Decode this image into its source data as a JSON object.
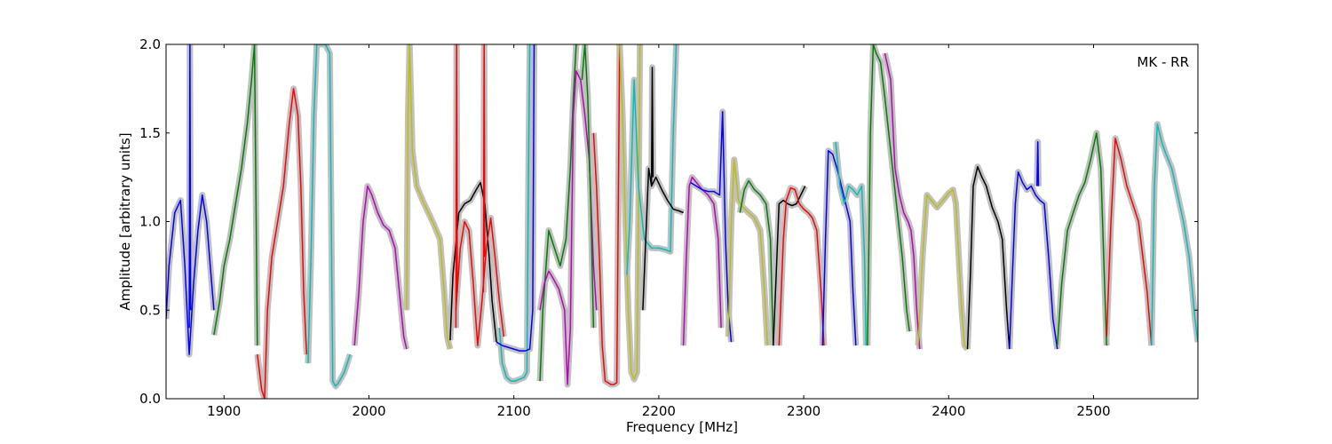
{
  "chart_data": {
    "type": "line",
    "title": "",
    "xlabel": "Frequency [MHz]",
    "ylabel": "Amplitude [arbitrary units]",
    "annotation": "MK - RR",
    "xlim": [
      1860,
      2572
    ],
    "ylim": [
      0.0,
      2.0
    ],
    "xticks": [
      1900,
      2000,
      2100,
      2200,
      2300,
      2400,
      2500
    ],
    "xtick_labels": [
      "1900",
      "2000",
      "2100",
      "2200",
      "2300",
      "2400",
      "2500"
    ],
    "yticks": [
      0.0,
      0.5,
      1.0,
      1.5,
      2.0
    ],
    "ytick_labels": [
      "0.0",
      "0.5",
      "1.0",
      "1.5",
      "2.0"
    ],
    "grid": false,
    "background_color": "#c0c0c0",
    "series": [
      {
        "color": "#0000ff",
        "x": [
          1860,
          1862,
          1866,
          1870,
          1873,
          1876,
          1879,
          1882,
          1885,
          1888,
          1891,
          1893
        ],
        "y": [
          0.45,
          0.75,
          1.05,
          1.12,
          0.75,
          0.25,
          0.65,
          0.95,
          1.15,
          1.0,
          0.7,
          0.5
        ]
      },
      {
        "color": "#0000ff",
        "x": [
          1876,
          1876.5,
          1877
        ],
        "y": [
          0.4,
          2.0,
          0.5
        ]
      },
      {
        "color": "#008000",
        "x": [
          1893,
          1897,
          1900,
          1904,
          1908,
          1912,
          1916,
          1919,
          1921,
          1923
        ],
        "y": [
          0.36,
          0.55,
          0.75,
          0.9,
          1.1,
          1.3,
          1.55,
          1.8,
          2.0,
          0.3
        ]
      },
      {
        "color": "#ff0000",
        "x": [
          1923,
          1926,
          1928,
          1930,
          1933,
          1937,
          1941,
          1945,
          1948,
          1951,
          1953,
          1955,
          1957
        ],
        "y": [
          0.25,
          0.05,
          0.0,
          0.5,
          0.8,
          1.0,
          1.2,
          1.55,
          1.75,
          1.6,
          1.2,
          0.6,
          0.25
        ]
      },
      {
        "color": "#00bfbf",
        "x": [
          1958,
          1960,
          1962,
          1964,
          1966,
          1968,
          1970,
          1973,
          1975,
          1977,
          1979,
          1981,
          1983,
          1985,
          1987
        ],
        "y": [
          0.2,
          0.8,
          1.6,
          2.0,
          2.0,
          2.0,
          2.0,
          1.95,
          0.1,
          0.07,
          0.09,
          0.12,
          0.15,
          0.2,
          0.25
        ]
      },
      {
        "color": "#bf00bf",
        "x": [
          1990,
          1993,
          1996,
          1999,
          2002,
          2006,
          2010,
          2014,
          2018,
          2021,
          2024,
          2026
        ],
        "y": [
          0.3,
          0.6,
          1.0,
          1.2,
          1.15,
          1.05,
          0.98,
          0.95,
          0.85,
          0.6,
          0.35,
          0.28
        ]
      },
      {
        "color": "#bfbf00",
        "x": [
          2026,
          2027,
          2028,
          2030,
          2033,
          2037,
          2041,
          2045,
          2049,
          2052,
          2054,
          2056
        ],
        "y": [
          0.5,
          1.6,
          2.0,
          1.4,
          1.2,
          1.12,
          1.05,
          0.98,
          0.9,
          0.6,
          0.35,
          0.28
        ]
      },
      {
        "color": "#000000",
        "x": [
          2056,
          2058,
          2062,
          2066,
          2070,
          2074,
          2077,
          2080,
          2083,
          2085,
          2088
        ],
        "y": [
          0.33,
          0.7,
          1.05,
          1.1,
          1.12,
          1.18,
          1.22,
          1.1,
          0.8,
          0.55,
          0.32
        ]
      },
      {
        "color": "#ff0000",
        "x": [
          2060,
          2063,
          2066,
          2069,
          2072,
          2075,
          2078,
          2081,
          2084,
          2087,
          2090,
          2093
        ],
        "y": [
          0.5,
          0.85,
          1.0,
          0.95,
          0.65,
          0.3,
          0.55,
          0.85,
          1.02,
          0.8,
          0.55,
          0.35
        ]
      },
      {
        "color": "#ff0000",
        "x": [
          2060,
          2060.5,
          2061
        ],
        "y": [
          0.4,
          2.0,
          0.6
        ]
      },
      {
        "color": "#ff0000",
        "x": [
          2079,
          2079.5,
          2080
        ],
        "y": [
          0.6,
          2.0,
          0.8
        ]
      },
      {
        "color": "#00bfbf",
        "x": [
          2090,
          2092,
          2095,
          2098,
          2101,
          2104,
          2107,
          2109,
          2110,
          2111
        ],
        "y": [
          0.4,
          0.2,
          0.12,
          0.1,
          0.1,
          0.11,
          0.12,
          0.15,
          1.2,
          2.0
        ]
      },
      {
        "color": "#0000ff",
        "x": [
          2088,
          2092,
          2096,
          2100,
          2104,
          2108,
          2111,
          2113,
          2114
        ],
        "y": [
          0.32,
          0.3,
          0.29,
          0.28,
          0.27,
          0.27,
          0.28,
          0.5,
          2.0
        ]
      },
      {
        "color": "#008000",
        "x": [
          2118,
          2120,
          2124,
          2128,
          2132,
          2136,
          2139,
          2141,
          2143
        ],
        "y": [
          0.1,
          0.5,
          0.95,
          0.85,
          0.75,
          0.9,
          1.3,
          1.7,
          2.0
        ]
      },
      {
        "color": "#bf00bf",
        "x": [
          2118,
          2121,
          2124,
          2127,
          2131,
          2135,
          2137,
          2139,
          2141,
          2143,
          2146,
          2149,
          2152,
          2155,
          2157
        ],
        "y": [
          0.5,
          0.65,
          0.72,
          0.68,
          0.62,
          0.5,
          0.08,
          0.4,
          1.6,
          1.85,
          1.8,
          1.6,
          1.35,
          0.75,
          0.5
        ]
      },
      {
        "color": "#008000",
        "x": [
          2147,
          2149,
          2151,
          2153,
          2155
        ],
        "y": [
          1.8,
          2.0,
          1.7,
          1.1,
          0.4
        ]
      },
      {
        "color": "#ff0000",
        "x": [
          2155,
          2157,
          2159,
          2161,
          2163,
          2165,
          2167,
          2169,
          2171,
          2173
        ],
        "y": [
          1.5,
          1.2,
          0.8,
          0.3,
          0.1,
          0.09,
          0.08,
          0.08,
          0.09,
          2.0
        ]
      },
      {
        "color": "#bfbf00",
        "x": [
          2173,
          2175,
          2177,
          2179,
          2181,
          2183,
          2185,
          2187
        ],
        "y": [
          2.0,
          1.6,
          1.0,
          0.5,
          0.15,
          0.11,
          0.15,
          2.0
        ]
      },
      {
        "color": "#00bfbf",
        "x": [
          2178,
          2180,
          2183,
          2186,
          2190,
          2195,
          2200,
          2205,
          2208,
          2210,
          2212
        ],
        "y": [
          0.7,
          1.0,
          1.8,
          1.2,
          0.9,
          0.85,
          0.85,
          0.84,
          0.83,
          1.5,
          2.0
        ]
      },
      {
        "color": "#000000",
        "x": [
          2189,
          2191,
          2193,
          2195,
          2198,
          2202,
          2206,
          2210,
          2214,
          2217
        ],
        "y": [
          0.5,
          0.9,
          1.3,
          1.2,
          1.25,
          1.18,
          1.12,
          1.07,
          1.06,
          1.05
        ]
      },
      {
        "color": "#000000",
        "x": [
          2195,
          2195.5,
          2196
        ],
        "y": [
          1.2,
          1.87,
          1.25
        ]
      },
      {
        "color": "#bf00bf",
        "x": [
          2217,
          2219,
          2221,
          2223,
          2226,
          2230,
          2234,
          2238,
          2241,
          2243
        ],
        "y": [
          0.3,
          0.8,
          1.2,
          1.25,
          1.22,
          1.18,
          1.15,
          1.1,
          0.9,
          0.4
        ]
      },
      {
        "color": "#0000ff",
        "x": [
          2222,
          2226,
          2230,
          2234,
          2238,
          2242,
          2244,
          2246,
          2248,
          2250
        ],
        "y": [
          1.22,
          1.2,
          1.18,
          1.17,
          1.17,
          1.15,
          1.62,
          0.9,
          0.5,
          0.32
        ]
      },
      {
        "color": "#bfbf00",
        "x": [
          2248,
          2250,
          2252,
          2255,
          2258,
          2262,
          2266,
          2270,
          2273,
          2275
        ],
        "y": [
          0.35,
          1.0,
          1.35,
          1.12,
          1.08,
          1.05,
          1.02,
          0.95,
          0.6,
          0.3
        ]
      },
      {
        "color": "#008000",
        "x": [
          2256,
          2259,
          2262,
          2266,
          2270,
          2274,
          2277,
          2279
        ],
        "y": [
          1.05,
          1.18,
          1.23,
          1.18,
          1.15,
          1.1,
          0.9,
          0.3
        ]
      },
      {
        "color": "#000000",
        "x": [
          2279,
          2281,
          2283,
          2286,
          2289,
          2292,
          2295,
          2298,
          2301
        ],
        "y": [
          0.3,
          0.7,
          1.1,
          1.12,
          1.1,
          1.09,
          1.1,
          1.15,
          1.2
        ]
      },
      {
        "color": "#ff0000",
        "x": [
          2283,
          2286,
          2288,
          2291,
          2294,
          2297,
          2300,
          2303,
          2306,
          2309,
          2312,
          2314
        ],
        "y": [
          0.3,
          0.9,
          1.12,
          1.19,
          1.18,
          1.1,
          1.07,
          1.05,
          1.02,
          0.95,
          0.6,
          0.3
        ]
      },
      {
        "color": "#0000ff",
        "x": [
          2313,
          2315,
          2317,
          2320,
          2323,
          2326,
          2329,
          2332,
          2334,
          2336
        ],
        "y": [
          0.3,
          0.9,
          1.4,
          1.38,
          1.3,
          1.2,
          1.1,
          1.0,
          0.6,
          0.3
        ]
      },
      {
        "color": "#00bfbf",
        "x": [
          2322,
          2325,
          2328,
          2331,
          2334,
          2337,
          2340,
          2342,
          2343
        ],
        "y": [
          1.45,
          1.2,
          1.1,
          1.2,
          1.18,
          1.15,
          1.2,
          0.8,
          0.3
        ]
      },
      {
        "color": "#008000",
        "x": [
          2344,
          2346,
          2348,
          2350,
          2353,
          2356,
          2360,
          2364,
          2368,
          2371,
          2373
        ],
        "y": [
          0.3,
          1.5,
          2.0,
          1.95,
          1.9,
          1.7,
          1.4,
          1.1,
          0.8,
          0.5,
          0.38
        ]
      },
      {
        "color": "#bf00bf",
        "x": [
          2356,
          2360,
          2363,
          2366,
          2369,
          2372,
          2374,
          2376,
          2378,
          2380
        ],
        "y": [
          1.95,
          1.8,
          1.3,
          1.15,
          1.05,
          1.0,
          0.95,
          0.8,
          0.5,
          0.28
        ]
      },
      {
        "color": "#bfbf00",
        "x": [
          2379,
          2382,
          2385,
          2388,
          2392,
          2396,
          2400,
          2403,
          2405,
          2407,
          2409,
          2411,
          2413
        ],
        "y": [
          0.3,
          0.8,
          1.15,
          1.12,
          1.08,
          1.12,
          1.16,
          1.18,
          1.1,
          0.8,
          0.5,
          0.3,
          0.28
        ]
      },
      {
        "color": "#000000",
        "x": [
          2413,
          2415,
          2417,
          2420,
          2423,
          2426,
          2430,
          2434,
          2437,
          2440,
          2442
        ],
        "y": [
          0.28,
          0.7,
          1.2,
          1.31,
          1.25,
          1.2,
          1.08,
          1.0,
          0.9,
          0.5,
          0.28
        ]
      },
      {
        "color": "#0000ff",
        "x": [
          2442,
          2444,
          2446,
          2448,
          2451,
          2454,
          2457,
          2460,
          2463,
          2466,
          2469,
          2472,
          2475
        ],
        "y": [
          0.28,
          0.7,
          1.1,
          1.28,
          1.22,
          1.18,
          1.2,
          1.15,
          1.12,
          1.1,
          0.8,
          0.45,
          0.28
        ]
      },
      {
        "color": "#0000ff",
        "x": [
          2461,
          2461.5,
          2462
        ],
        "y": [
          1.2,
          1.45,
          1.2
        ]
      },
      {
        "color": "#008000",
        "x": [
          2475,
          2478,
          2482,
          2486,
          2490,
          2494,
          2498,
          2502,
          2505,
          2507,
          2509
        ],
        "y": [
          0.3,
          0.65,
          0.95,
          1.05,
          1.15,
          1.22,
          1.35,
          1.5,
          1.3,
          0.8,
          0.3
        ]
      },
      {
        "color": "#ff0000",
        "x": [
          2509,
          2512,
          2515,
          2519,
          2523,
          2527,
          2531,
          2534,
          2537,
          2540
        ],
        "y": [
          0.35,
          1.0,
          1.47,
          1.35,
          1.2,
          1.1,
          1.0,
          0.8,
          0.6,
          0.3
        ]
      },
      {
        "color": "#00bfbf",
        "x": [
          2540,
          2542,
          2544,
          2547,
          2550,
          2554,
          2558,
          2562,
          2566,
          2570,
          2572
        ],
        "y": [
          0.3,
          1.2,
          1.55,
          1.45,
          1.38,
          1.3,
          1.15,
          1.0,
          0.8,
          0.45,
          0.32
        ]
      }
    ]
  }
}
